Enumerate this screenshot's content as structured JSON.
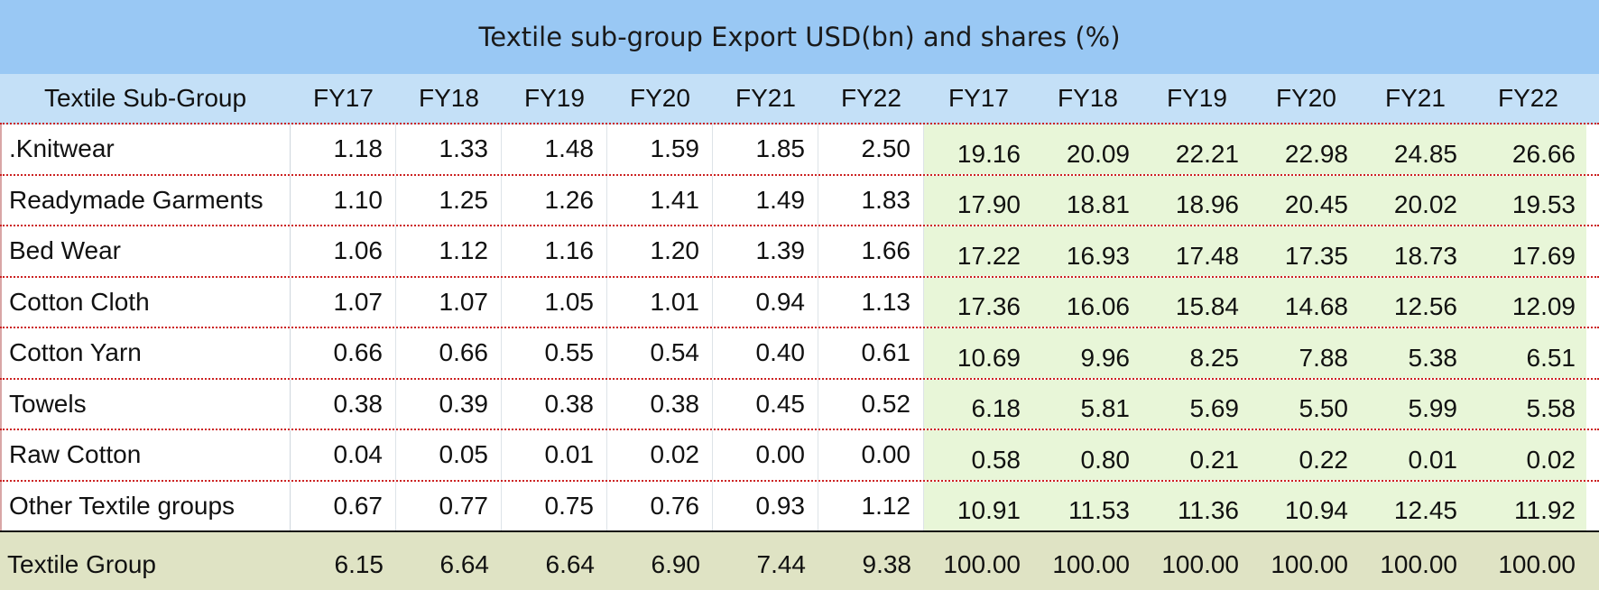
{
  "title": "Textile sub-group Export USD(bn) and shares (%)",
  "header": {
    "label": "Textile Sub-Group",
    "value_years": [
      "FY17",
      "FY18",
      "FY19",
      "FY20",
      "FY21",
      "FY22"
    ],
    "share_years": [
      "FY17",
      "FY18",
      "FY19",
      "FY20",
      "FY21",
      "FY22"
    ]
  },
  "rows": [
    {
      "name": ".Knitwear",
      "values": [
        "1.18",
        "1.33",
        "1.48",
        "1.59",
        "1.85",
        "2.50"
      ],
      "shares": [
        "19.16",
        "20.09",
        "22.21",
        "22.98",
        "24.85",
        "26.66"
      ]
    },
    {
      "name": "Readymade Garments",
      "values": [
        "1.10",
        "1.25",
        "1.26",
        "1.41",
        "1.49",
        "1.83"
      ],
      "shares": [
        "17.90",
        "18.81",
        "18.96",
        "20.45",
        "20.02",
        "19.53"
      ]
    },
    {
      "name": "Bed Wear",
      "values": [
        "1.06",
        "1.12",
        "1.16",
        "1.20",
        "1.39",
        "1.66"
      ],
      "shares": [
        "17.22",
        "16.93",
        "17.48",
        "17.35",
        "18.73",
        "17.69"
      ]
    },
    {
      "name": "Cotton Cloth",
      "values": [
        "1.07",
        "1.07",
        "1.05",
        "1.01",
        "0.94",
        "1.13"
      ],
      "shares": [
        "17.36",
        "16.06",
        "15.84",
        "14.68",
        "12.56",
        "12.09"
      ]
    },
    {
      "name": "Cotton Yarn",
      "values": [
        "0.66",
        "0.66",
        "0.55",
        "0.54",
        "0.40",
        "0.61"
      ],
      "shares": [
        "10.69",
        "9.96",
        "8.25",
        "7.88",
        "5.38",
        "6.51"
      ]
    },
    {
      "name": "Towels",
      "values": [
        "0.38",
        "0.39",
        "0.38",
        "0.38",
        "0.45",
        "0.52"
      ],
      "shares": [
        "6.18",
        "5.81",
        "5.69",
        "5.50",
        "5.99",
        "5.58"
      ]
    },
    {
      "name": "Raw Cotton",
      "values": [
        "0.04",
        "0.05",
        "0.01",
        "0.02",
        "0.00",
        "0.00"
      ],
      "shares": [
        "0.58",
        "0.80",
        "0.21",
        "0.22",
        "0.01",
        "0.02"
      ]
    },
    {
      "name": "Other Textile groups",
      "values": [
        "0.67",
        "0.77",
        "0.75",
        "0.76",
        "0.93",
        "1.12"
      ],
      "shares": [
        "10.91",
        "11.53",
        "11.36",
        "10.94",
        "12.45",
        "11.92"
      ]
    }
  ],
  "total": {
    "name": "Textile Group",
    "values": [
      "6.15",
      "6.64",
      "6.64",
      "6.90",
      "7.44",
      "9.38"
    ],
    "shares": [
      "100.00",
      "100.00",
      "100.00",
      "100.00",
      "100.00",
      "100.00"
    ]
  },
  "colors": {
    "title_background": "#99c8f4",
    "header_background": "#c4e0f7",
    "share_background": "#e8f6d8",
    "total_background": "#dfe3c4",
    "row_separator": "#cc2222"
  }
}
